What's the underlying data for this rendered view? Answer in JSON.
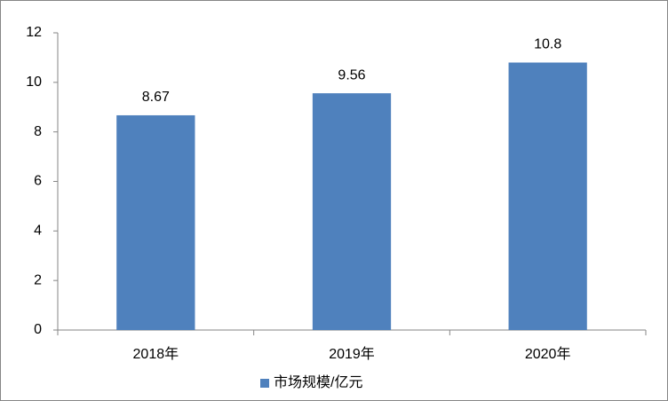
{
  "chart_data": {
    "type": "bar",
    "categories": [
      "2018年",
      "2019年",
      "2020年"
    ],
    "series": [
      {
        "name": "市场规模/亿元",
        "color": "#4f81bd",
        "values": [
          8.67,
          9.56,
          10.8
        ]
      }
    ],
    "ylim": [
      0,
      12
    ],
    "yticks": [
      0,
      2,
      4,
      6,
      8,
      10,
      12
    ],
    "grid": false,
    "data_labels": true,
    "legend": "bottom"
  }
}
